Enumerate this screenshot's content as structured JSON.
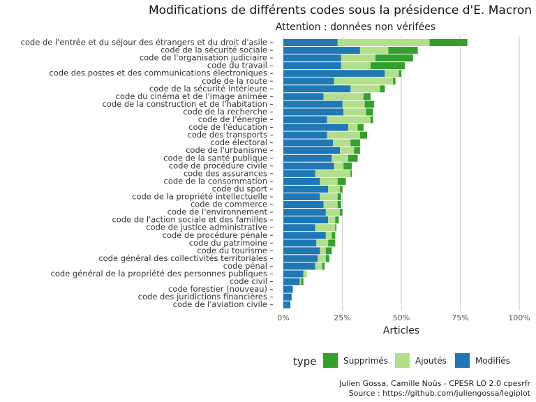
{
  "chart_data": {
    "type": "bar",
    "orientation": "horizontal",
    "stacked": true,
    "title": "Modifications de différents codes sous la présidence d'E. Macron",
    "subtitle": "Attention : données non vérifées",
    "xlabel": "Articles",
    "ylabel": "",
    "xlim": [
      0,
      1
    ],
    "xticks": [
      "0%",
      "25%",
      "50%",
      "75%",
      "100%"
    ],
    "grid": "vertical-major",
    "legend_title": "type",
    "legend_position": "bottom",
    "categories": [
      "code de l'entrée et du séjour des étrangers et du droit d'asile",
      "code de la sécurité sociale",
      "code de l'organisation judiciaire",
      "code du travail",
      "code des postes et des communications électroniques",
      "code de la route",
      "code de la sécurité intérieure",
      "code du cinéma et de l'image animée",
      "code de la construction et de l'habitation",
      "code de la recherche",
      "code de l'énergie",
      "code de l'éducation",
      "code des transports",
      "code électoral",
      "code de l'urbanisme",
      "code de la santé publique",
      "code de procédure civile",
      "code des assurances",
      "code de la consommation",
      "code du sport",
      "code de la propriété intellectuelle",
      "code de commerce",
      "code de l'environnement",
      "code de l'action sociale et des familles",
      "code de justice administrative",
      "code de procédure pénale",
      "code du patrimoine",
      "code du tourisme",
      "code général des collectivités territoriales",
      "code pénal",
      "code général de la propriété des personnes publiques",
      "code civil",
      "code forestier (nouveau)",
      "code des juridictions financières",
      "code de l'aviation civile"
    ],
    "series": [
      {
        "name": "Modifiés",
        "color": "#1f78b4",
        "values": [
          0.23,
          0.325,
          0.245,
          0.245,
          0.43,
          0.215,
          0.285,
          0.17,
          0.25,
          0.255,
          0.185,
          0.275,
          0.185,
          0.21,
          0.24,
          0.205,
          0.215,
          0.135,
          0.155,
          0.19,
          0.155,
          0.17,
          0.18,
          0.19,
          0.135,
          0.18,
          0.14,
          0.155,
          0.145,
          0.135,
          0.085,
          0.07,
          0.04,
          0.035,
          0.03
        ]
      },
      {
        "name": "Ajoutés",
        "color": "#b2df8a",
        "values": [
          0.39,
          0.12,
          0.145,
          0.125,
          0.06,
          0.25,
          0.125,
          0.17,
          0.095,
          0.095,
          0.185,
          0.04,
          0.14,
          0.075,
          0.06,
          0.07,
          0.04,
          0.15,
          0.075,
          0.05,
          0.075,
          0.06,
          0.06,
          0.03,
          0.085,
          0.025,
          0.05,
          0.025,
          0.035,
          0.03,
          0.015,
          0.005,
          0.0,
          0.0,
          0.0
        ]
      },
      {
        "name": "Supprimés",
        "color": "#33a02c",
        "values": [
          0.16,
          0.125,
          0.16,
          0.145,
          0.01,
          0.01,
          0.02,
          0.03,
          0.04,
          0.03,
          0.01,
          0.025,
          0.03,
          0.04,
          0.025,
          0.04,
          0.035,
          0.005,
          0.035,
          0.01,
          0.015,
          0.015,
          0.01,
          0.015,
          0.005,
          0.015,
          0.03,
          0.025,
          0.015,
          0.01,
          0.0,
          0.01,
          0.0,
          0.0,
          0.0
        ]
      }
    ],
    "legend_order": [
      "Supprimés",
      "Ajoutés",
      "Modifiés"
    ],
    "caption": [
      "Julien Gossa, Camille Noûs - CPESR LO 2.0 cpesrfr",
      "Source : https://github.com/juliengossa/legiplot"
    ]
  }
}
